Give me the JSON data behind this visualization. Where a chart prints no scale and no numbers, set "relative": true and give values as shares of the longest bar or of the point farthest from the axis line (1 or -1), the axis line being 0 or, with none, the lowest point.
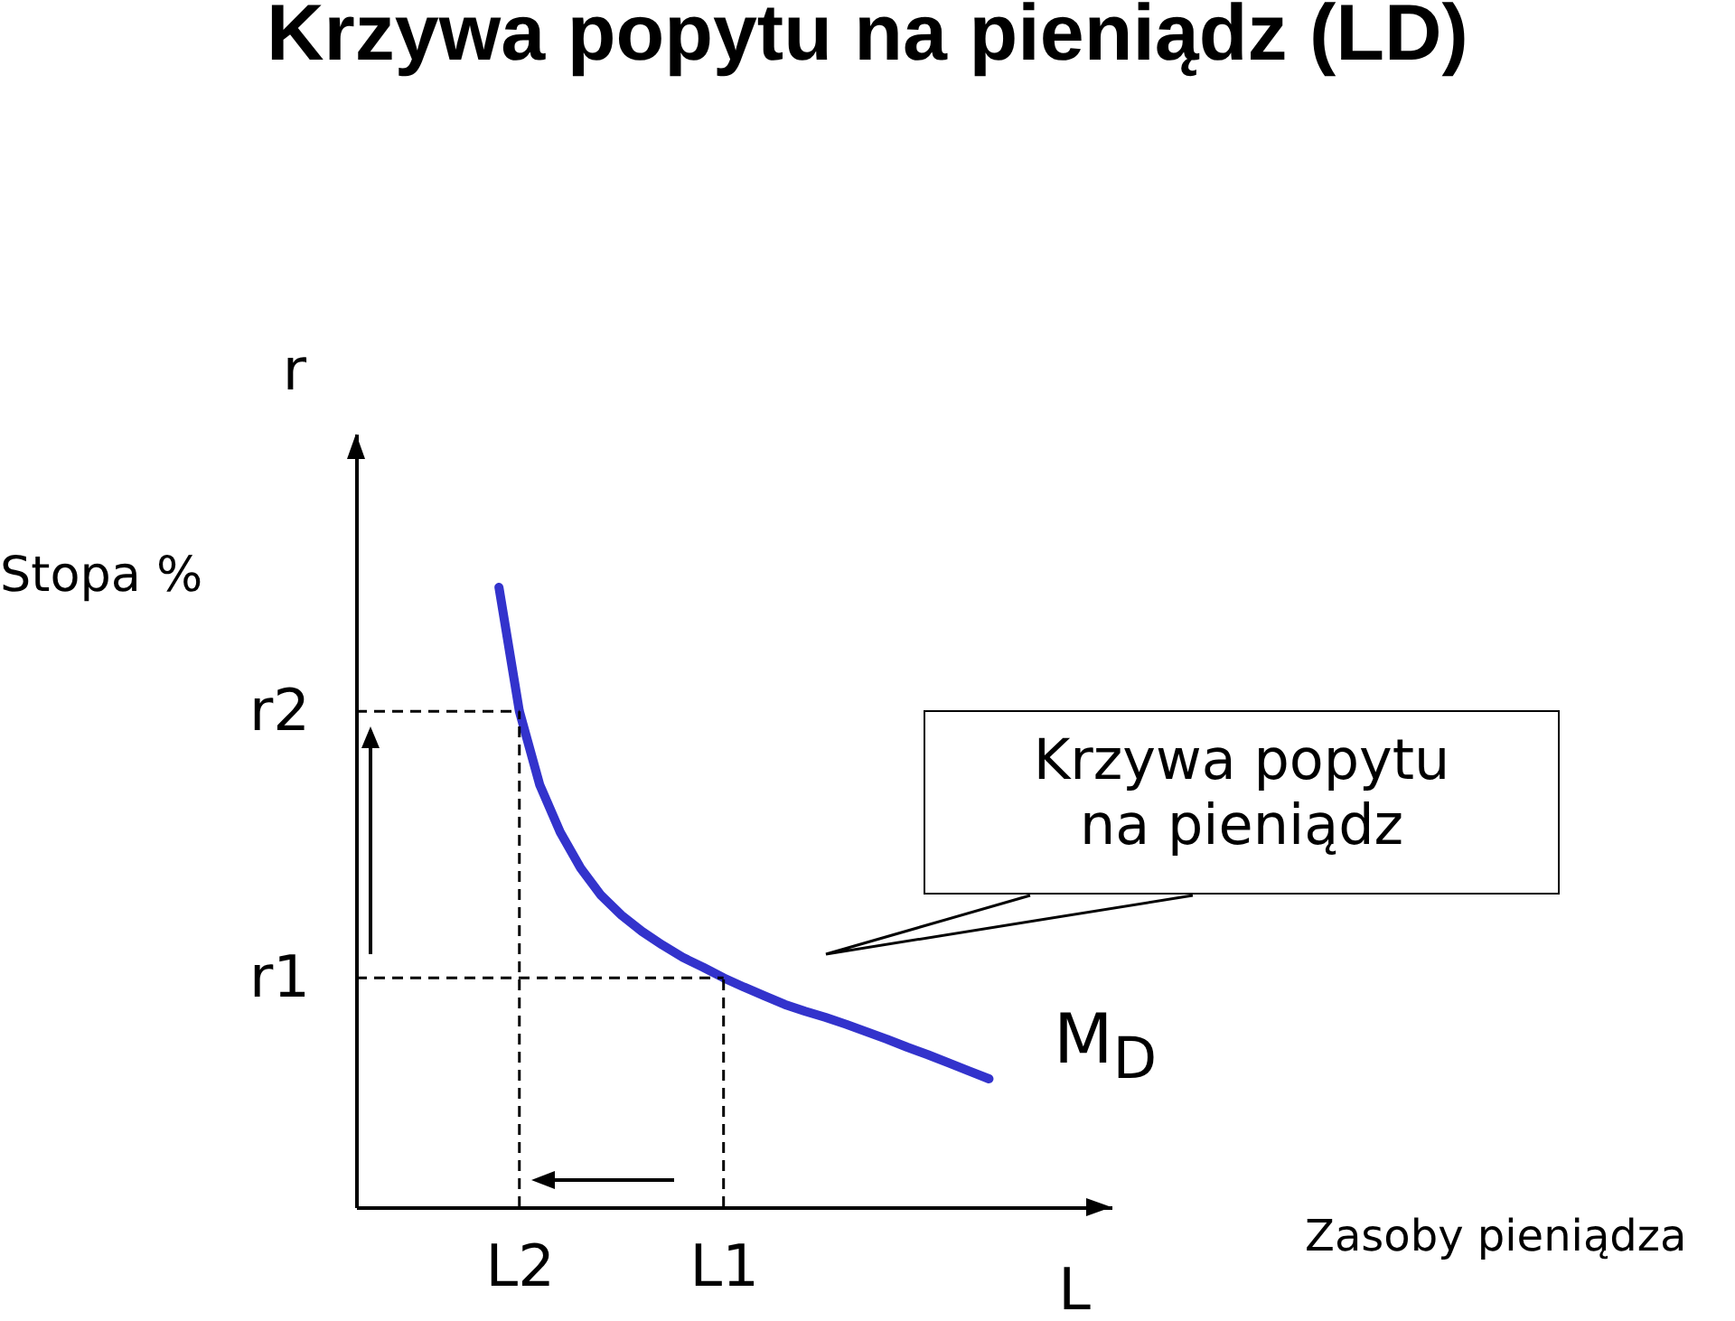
{
  "chart_data": {
    "type": "line",
    "title": "Krzywa popytu na pieniądz (LD)",
    "ylabel": "r",
    "xlabel": "L",
    "relative": true,
    "grid": false,
    "categories": [
      null,
      null,
      null,
      null,
      null,
      null,
      null,
      null,
      "L2",
      null,
      null,
      null,
      null,
      null,
      null,
      null,
      null,
      null,
      "L1",
      null,
      null,
      null,
      null,
      null,
      null,
      null,
      null,
      null,
      null,
      null,
      null,
      null,
      null,
      null,
      null,
      null,
      null,
      null
    ],
    "series": [
      {
        "color": "#3333cc",
        "values": [
          null,
          null,
          null,
          null,
          null,
          null,
          null,
          1,
          0.8,
          0.681,
          0.605,
          0.547,
          0.503,
          0.471,
          0.445,
          0.423,
          0.403,
          0.387,
          0.37,
          0.355,
          0.341,
          0.327,
          0.316,
          0.306,
          0.295,
          0.283,
          0.271,
          0.258,
          0.246,
          0.233,
          0.22,
          0.207,
          null,
          null,
          null,
          null,
          null,
          null
        ]
      }
    ],
    "ref_lines": [
      {
        "axis": "y",
        "value": 0.8,
        "label": "r2",
        "line_style": "dashed"
      },
      {
        "axis": "y",
        "value": 0.37,
        "label": "r1",
        "line_style": "dashed"
      },
      {
        "axis": "x",
        "value": "L2",
        "line_style": "dashed"
      },
      {
        "axis": "x",
        "value": "L1",
        "line_style": "dashed"
      }
    ],
    "annotations": [
      "Stopa %",
      "Zasoby pieniądza",
      "Krzywa popytu na pieniądz",
      "M$_{D}$"
    ]
  }
}
